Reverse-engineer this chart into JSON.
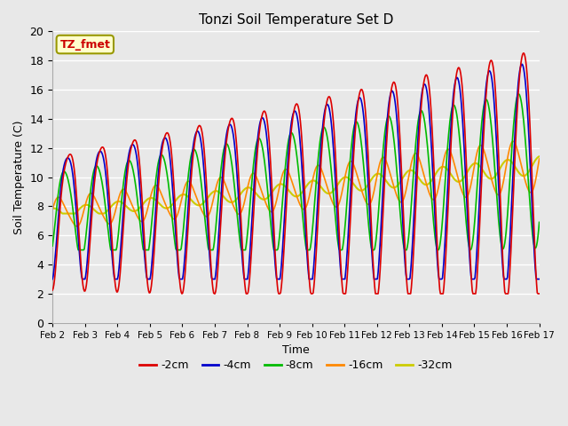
{
  "title": "Tonzi Soil Temperature Set D",
  "xlabel": "Time",
  "ylabel": "Soil Temperature (C)",
  "annotation": "TZ_fmet",
  "ylim": [
    0,
    20
  ],
  "background_color": "#e8e8e8",
  "series": {
    "-2cm": {
      "color": "#dd0000",
      "linewidth": 1.2
    },
    "-4cm": {
      "color": "#0000cc",
      "linewidth": 1.2
    },
    "-8cm": {
      "color": "#00bb00",
      "linewidth": 1.2
    },
    "-16cm": {
      "color": "#ff8800",
      "linewidth": 1.2
    },
    "-32cm": {
      "color": "#cccc00",
      "linewidth": 1.5
    }
  },
  "tick_labels": [
    "Feb 2",
    "Feb 3",
    "Feb 4",
    "Feb 5",
    "Feb 6",
    "Feb 7",
    "Feb 8",
    "Feb 9",
    "Feb 10",
    "Feb 11",
    "Feb 12",
    "Feb 13",
    "Feb 14",
    "Feb 15",
    "Feb 16",
    "Feb 17"
  ],
  "yticks": [
    0,
    2,
    4,
    6,
    8,
    10,
    12,
    14,
    16,
    18,
    20
  ]
}
